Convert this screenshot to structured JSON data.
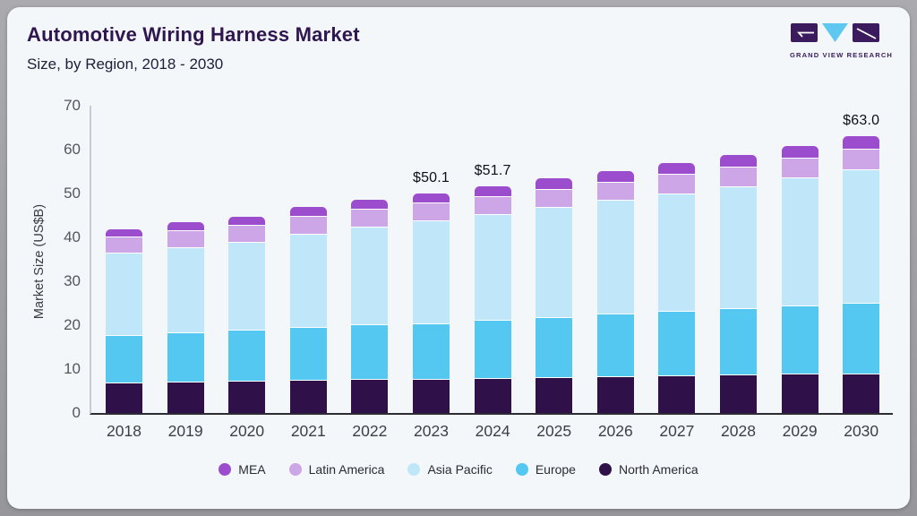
{
  "header": {
    "title": "Automotive Wiring Harness Market",
    "subtitle": "Size, by Region, 2018 - 2030"
  },
  "logo": {
    "text": "GRAND VIEW RESEARCH",
    "square_color": "#3b1b5e",
    "triangle_color": "#5ec8f0"
  },
  "chart_data": {
    "type": "bar",
    "stacked": true,
    "title": "Automotive Wiring Harness Market Size, by Region, 2018 - 2030",
    "categories": [
      "2018",
      "2019",
      "2020",
      "2021",
      "2022",
      "2023",
      "2024",
      "2025",
      "2026",
      "2027",
      "2028",
      "2029",
      "2030"
    ],
    "series": [
      {
        "name": "North America",
        "color": "#2f1048",
        "values": [
          7.0,
          7.1,
          7.3,
          7.5,
          7.7,
          7.7,
          8.0,
          8.2,
          8.4,
          8.6,
          8.8,
          8.9,
          9.0
        ]
      },
      {
        "name": "Europe",
        "color": "#55c8f2",
        "values": [
          10.8,
          11.2,
          11.6,
          12.1,
          12.6,
          12.8,
          13.2,
          13.7,
          14.2,
          14.6,
          15.1,
          15.6,
          16.1
        ]
      },
      {
        "name": "Asia Pacific",
        "color": "#c0e6fa",
        "values": [
          18.8,
          19.5,
          20.0,
          21.3,
          22.1,
          23.3,
          24.2,
          25.0,
          25.9,
          26.8,
          27.8,
          29.2,
          30.5
        ]
      },
      {
        "name": "Latin America",
        "color": "#cda6e8",
        "values": [
          3.6,
          3.8,
          3.9,
          4.0,
          4.1,
          4.1,
          4.0,
          4.2,
          4.2,
          4.4,
          4.5,
          4.4,
          4.6
        ]
      },
      {
        "name": "MEA",
        "color": "#9b4dcd",
        "values": [
          1.7,
          1.8,
          1.9,
          2.0,
          2.0,
          2.2,
          2.3,
          2.3,
          2.4,
          2.5,
          2.6,
          2.8,
          2.8
        ]
      }
    ],
    "annotations": [
      {
        "category": "2023",
        "text": "$50.1"
      },
      {
        "category": "2024",
        "text": "$51.7"
      },
      {
        "category": "2030",
        "text": "$63.0"
      }
    ],
    "xlabel": "",
    "ylabel": "Market Size (US$B)",
    "ylim": [
      0,
      70
    ],
    "yticks": [
      0,
      10,
      20,
      30,
      40,
      50,
      60,
      70
    ],
    "grid": false,
    "legend_position": "bottom"
  },
  "legend": {
    "items": [
      {
        "label": "MEA",
        "color": "#9b4dcd"
      },
      {
        "label": "Latin America",
        "color": "#cda6e8"
      },
      {
        "label": "Asia Pacific",
        "color": "#c0e6fa"
      },
      {
        "label": "Europe",
        "color": "#55c8f2"
      },
      {
        "label": "North America",
        "color": "#2f1048"
      }
    ]
  }
}
